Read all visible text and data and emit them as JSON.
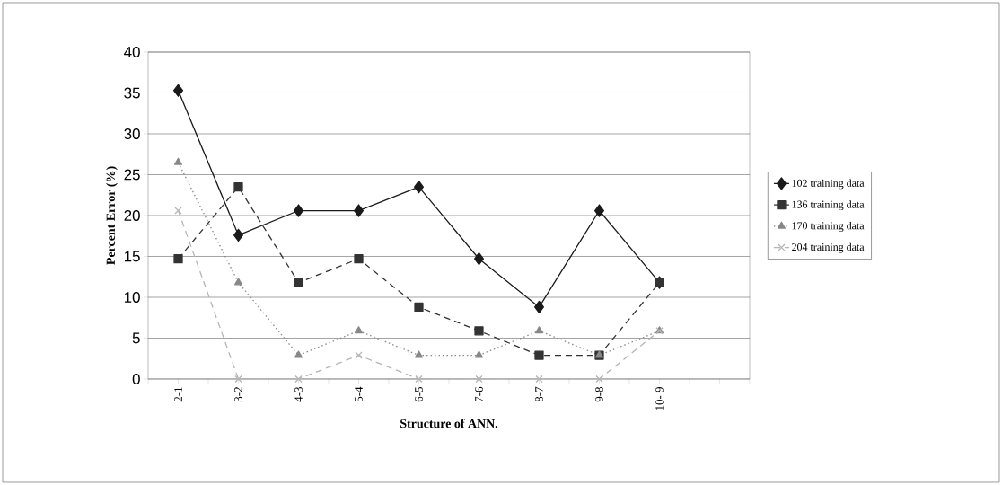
{
  "chart_data": {
    "type": "line",
    "xlabel": "Structure of  ANN.",
    "ylabel": "Percent Error (%)",
    "categories": [
      null,
      "2-1",
      null,
      "3-2",
      null,
      "4-3",
      null,
      "5-4",
      null,
      "6-5",
      null,
      "7-6",
      null,
      "8-7",
      null,
      "9-8",
      null,
      "10- 9",
      null,
      null,
      null
    ],
    "ylim": [
      0,
      40
    ],
    "yticks": [
      0,
      5,
      10,
      15,
      20,
      25,
      30,
      35,
      40
    ],
    "grid": "y",
    "legend": "right",
    "series": [
      {
        "name": "102 training data",
        "color": "#1a1a1a",
        "marker": "diamond",
        "line_style": "solid",
        "values": [
          null,
          35.3,
          null,
          17.6,
          null,
          20.6,
          null,
          20.6,
          null,
          23.5,
          null,
          14.7,
          null,
          8.8,
          null,
          20.6,
          null,
          11.8,
          null,
          null,
          null
        ]
      },
      {
        "name": "136 training data",
        "color": "#333333",
        "marker": "square",
        "line_style": "dashed",
        "values": [
          null,
          14.7,
          null,
          23.5,
          null,
          11.8,
          null,
          14.7,
          null,
          8.8,
          null,
          5.9,
          null,
          2.9,
          null,
          2.9,
          null,
          11.8,
          null,
          null,
          null
        ]
      },
      {
        "name": "170 training data",
        "color": "#888888",
        "marker": "triangle",
        "line_style": "dotted",
        "values": [
          null,
          26.5,
          null,
          11.8,
          null,
          2.9,
          null,
          5.9,
          null,
          2.9,
          null,
          2.9,
          null,
          5.9,
          null,
          2.9,
          null,
          5.9,
          null,
          null,
          null
        ]
      },
      {
        "name": "204 training data",
        "color": "#b5b5b5",
        "marker": "cross",
        "line_style": "dashed",
        "values": [
          null,
          20.6,
          null,
          0,
          null,
          0,
          null,
          2.9,
          null,
          0,
          null,
          0,
          null,
          0,
          null,
          0,
          null,
          5.9,
          null,
          null,
          null
        ]
      }
    ]
  }
}
